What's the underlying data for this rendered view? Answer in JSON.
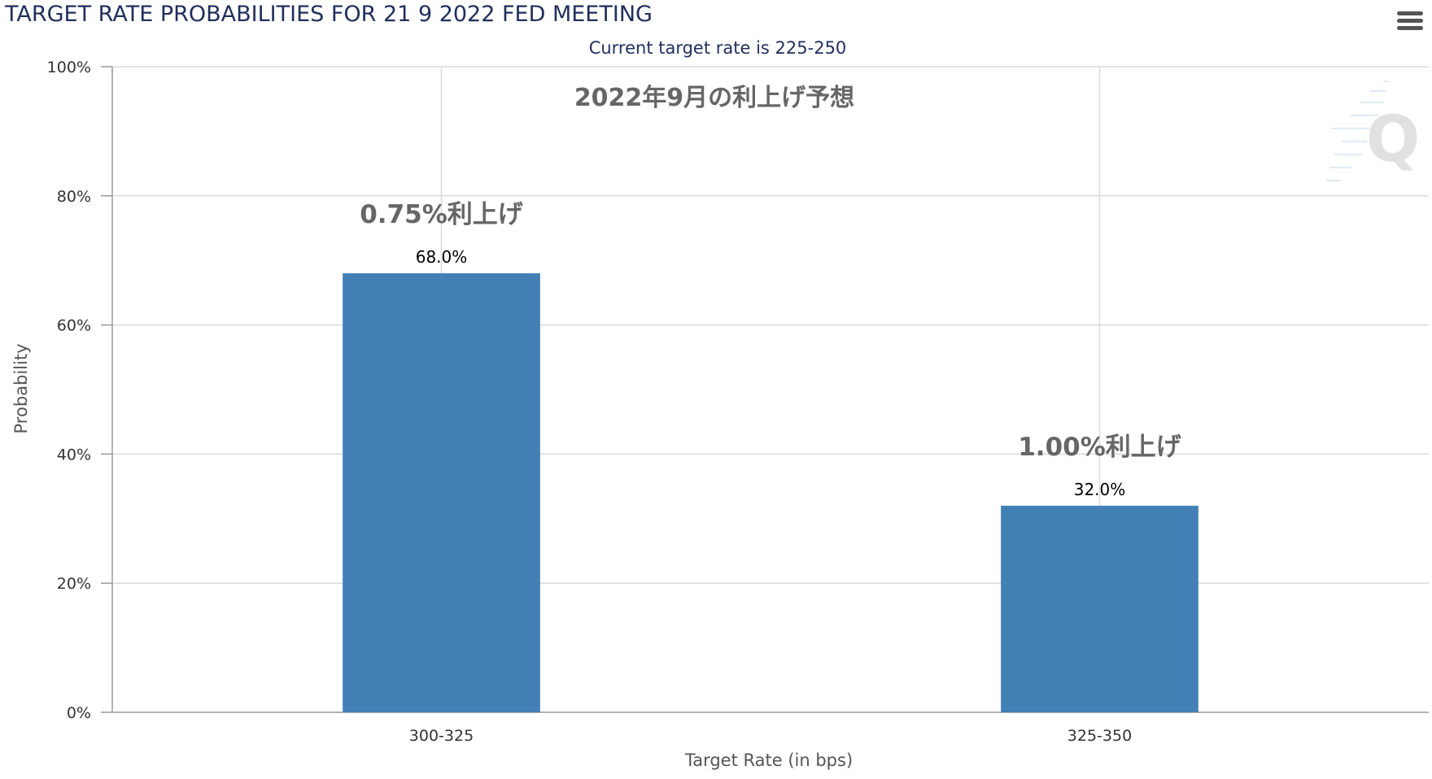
{
  "chart_data": {
    "type": "bar",
    "title": "TARGET RATE PROBABILITIES FOR 21 9 2022 FED MEETING",
    "subtitle": "Current target rate is 225-250",
    "annotation_main": "2022年9月の利上げ予想",
    "xlabel": "Target Rate (in bps)",
    "ylabel": "Probability",
    "categories": [
      "300-325",
      "325-350"
    ],
    "values": [
      68.0,
      32.0
    ],
    "data_labels": [
      "68.0%",
      "32.0%"
    ],
    "annotations": [
      "0.75%利上げ",
      "1.00%利上げ"
    ],
    "ylim": [
      0,
      100
    ],
    "yticks": [
      0,
      20,
      40,
      60,
      80,
      100
    ],
    "ytick_labels": [
      "0%",
      "20%",
      "40%",
      "60%",
      "80%",
      "100%"
    ],
    "grid": true,
    "bar_color": "#4380b6"
  },
  "menu_icon": "hamburger-menu-icon",
  "watermark_icon": "q-logo-icon"
}
